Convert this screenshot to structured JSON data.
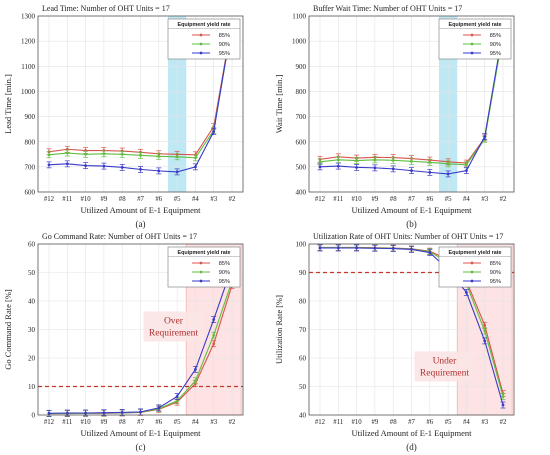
{
  "chart_data": [
    {
      "id": "a",
      "type": "line",
      "panel_label": "(a)",
      "title": "Lead Time: Number of OHT Units = 17",
      "xlabel": "Utilized Amount of E-1 Equipment",
      "ylabel": "Lead Time [min.]",
      "categories": [
        "#12",
        "#11",
        "#10",
        "#9",
        "#8",
        "#7",
        "#6",
        "#5",
        "#4",
        "#3",
        "#2"
      ],
      "ylim": [
        600,
        1300
      ],
      "yticks": [
        600,
        700,
        800,
        900,
        1000,
        1100,
        1200,
        1300
      ],
      "grid": true,
      "legend": {
        "title": "Equipment yield rate",
        "placement": "top-right"
      },
      "highlight": {
        "category": "#5",
        "color": "#bfe8f5",
        "label": ""
      },
      "threshold": null,
      "series": [
        {
          "name": "85%",
          "color": "#d9544d",
          "values": [
            760,
            770,
            765,
            765,
            763,
            758,
            752,
            750,
            748,
            860,
            1275
          ]
        },
        {
          "name": "90%",
          "color": "#5fbf3f",
          "values": [
            748,
            755,
            750,
            752,
            750,
            746,
            742,
            740,
            736,
            845,
            1265
          ]
        },
        {
          "name": "95%",
          "color": "#3a3ac8",
          "values": [
            708,
            712,
            705,
            703,
            698,
            690,
            684,
            680,
            700,
            840,
            1275
          ]
        }
      ]
    },
    {
      "id": "b",
      "type": "line",
      "panel_label": "(b)",
      "title": "Buffer Wait Time: Number of OHT Units = 17",
      "xlabel": "Utilized Amount of E-1 Equipment",
      "ylabel": "Wait Time [min.]",
      "categories": [
        "#12",
        "#11",
        "#10",
        "#9",
        "#8",
        "#7",
        "#6",
        "#5",
        "#4",
        "#3",
        "#2"
      ],
      "ylim": [
        400,
        1100
      ],
      "yticks": [
        400,
        500,
        600,
        700,
        800,
        900,
        1000,
        1100
      ],
      "grid": true,
      "legend": {
        "title": "Equipment yield rate",
        "placement": "top-right"
      },
      "highlight": {
        "category": "#5",
        "color": "#bfe8f5",
        "label": ""
      },
      "threshold": null,
      "series": [
        {
          "name": "85%",
          "color": "#d9544d",
          "values": [
            530,
            540,
            535,
            538,
            537,
            533,
            527,
            520,
            515,
            615,
            1035
          ]
        },
        {
          "name": "90%",
          "color": "#5fbf3f",
          "values": [
            520,
            528,
            525,
            528,
            526,
            522,
            518,
            512,
            508,
            610,
            1030
          ]
        },
        {
          "name": "95%",
          "color": "#3a3ac8",
          "values": [
            500,
            503,
            498,
            496,
            492,
            485,
            478,
            472,
            485,
            620,
            1045
          ]
        }
      ]
    },
    {
      "id": "c",
      "type": "line",
      "panel_label": "(c)",
      "title": "Go Command Rate: Number of OHT Units = 17",
      "xlabel": "Utilized Amount of E-1 Equipment",
      "ylabel": "Go Command Rate [%]",
      "categories": [
        "#12",
        "#11",
        "#10",
        "#9",
        "#8",
        "#7",
        "#6",
        "#5",
        "#4",
        "#3",
        "#2"
      ],
      "ylim": [
        0,
        60
      ],
      "yticks": [
        0,
        10,
        20,
        30,
        40,
        50,
        60
      ],
      "grid": true,
      "legend": {
        "title": "Equipment yield rate",
        "placement": "top-right"
      },
      "highlight": {
        "range": [
          "#4",
          "#2"
        ],
        "color": "#fde3e3",
        "label": "Over\nRequirement",
        "label_at": "#5"
      },
      "threshold": {
        "value": 10,
        "color": "#c0392b"
      },
      "series": [
        {
          "name": "85%",
          "color": "#d9544d",
          "values": [
            0.5,
            0.5,
            0.6,
            0.6,
            0.7,
            0.9,
            2.0,
            4.5,
            11.0,
            25.0,
            45.5
          ]
        },
        {
          "name": "90%",
          "color": "#5fbf3f",
          "values": [
            0.5,
            0.6,
            0.6,
            0.7,
            0.8,
            1.0,
            2.2,
            5.0,
            12.0,
            28.0,
            47.0
          ]
        },
        {
          "name": "95%",
          "color": "#3a3ac8",
          "values": [
            0.6,
            0.7,
            0.7,
            0.8,
            0.9,
            1.1,
            2.5,
            6.5,
            16.0,
            33.5,
            52.0
          ]
        }
      ]
    },
    {
      "id": "d",
      "type": "line",
      "panel_label": "(d)",
      "title": "Utilization Rate of OHT Units: Number of OHT Units = 17",
      "xlabel": "Utilized Amount of E-1 Equipment",
      "ylabel": "Utilization Rate [%]",
      "categories": [
        "#12",
        "#11",
        "#10",
        "#9",
        "#8",
        "#7",
        "#6",
        "#5",
        "#4",
        "#3",
        "#2"
      ],
      "ylim": [
        40,
        100
      ],
      "yticks": [
        40,
        50,
        60,
        70,
        80,
        90,
        100
      ],
      "grid": true,
      "legend": {
        "title": "Equipment yield rate",
        "placement": "top-right"
      },
      "highlight": {
        "range": [
          "#4",
          "#2"
        ],
        "color": "#fde3e3",
        "label": "Under\nRequirement",
        "label_at": "#5"
      },
      "threshold": {
        "value": 90,
        "color": "#c0392b"
      },
      "series": [
        {
          "name": "85%",
          "color": "#d9544d",
          "values": [
            98.8,
            98.8,
            98.8,
            98.7,
            98.6,
            98.3,
            97.5,
            94.5,
            87.0,
            71.5,
            47.5
          ]
        },
        {
          "name": "90%",
          "color": "#5fbf3f",
          "values": [
            98.7,
            98.7,
            98.7,
            98.6,
            98.5,
            98.2,
            97.3,
            93.5,
            86.0,
            69.5,
            46.5
          ]
        },
        {
          "name": "95%",
          "color": "#3a3ac8",
          "values": [
            98.6,
            98.6,
            98.6,
            98.5,
            98.4,
            98.1,
            97.0,
            91.0,
            83.0,
            66.0,
            43.5
          ]
        }
      ]
    }
  ]
}
